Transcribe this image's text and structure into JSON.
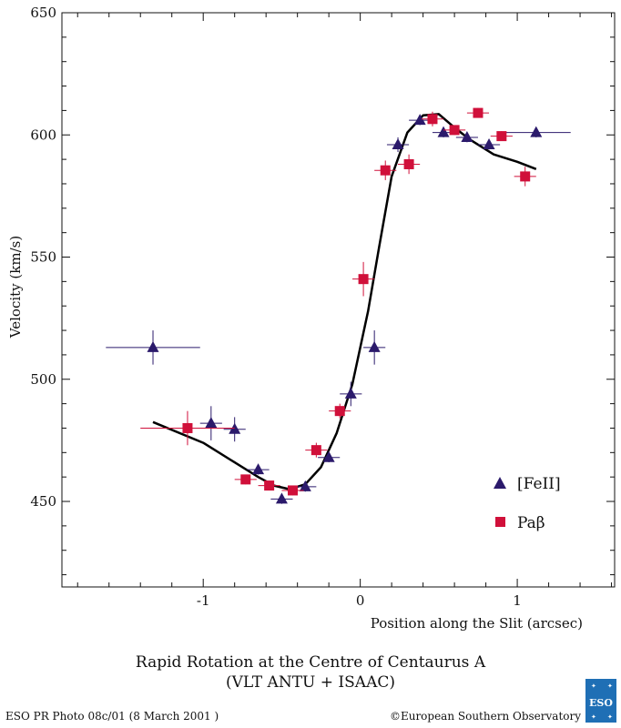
{
  "chart_data": {
    "type": "scatter",
    "xlabel": "Position along the Slit (arcsec)",
    "ylabel": "Velocity (km/s)",
    "xlim": [
      -1.9,
      1.62
    ],
    "ylim": [
      415,
      650
    ],
    "x_ticks": [
      -1,
      0,
      1
    ],
    "x_tick_labels": [
      "-1",
      "0",
      "1"
    ],
    "y_ticks": [
      450,
      500,
      550,
      600,
      650
    ],
    "y_tick_labels": [
      "450",
      "500",
      "550",
      "600",
      "650"
    ],
    "grid": false,
    "legend_position": "bottom-right",
    "series": [
      {
        "name": "[FeII]",
        "marker": "triangle",
        "color": "#2b1a6b",
        "points": [
          {
            "x": -1.32,
            "y": 513,
            "xerr": 0.3,
            "yerr": 7
          },
          {
            "x": -0.95,
            "y": 482,
            "xerr": 0.07,
            "yerr": 7
          },
          {
            "x": -0.8,
            "y": 479.5,
            "xerr": 0.07,
            "yerr": 5
          },
          {
            "x": -0.65,
            "y": 463,
            "xerr": 0.07,
            "yerr": 2
          },
          {
            "x": -0.5,
            "y": 451,
            "xerr": 0.07,
            "yerr": 2
          },
          {
            "x": -0.35,
            "y": 456,
            "xerr": 0.07,
            "yerr": 2
          },
          {
            "x": -0.2,
            "y": 468,
            "xerr": 0.07,
            "yerr": 2
          },
          {
            "x": -0.06,
            "y": 494,
            "xerr": 0.07,
            "yerr": 5
          },
          {
            "x": 0.09,
            "y": 513,
            "xerr": 0.07,
            "yerr": 7
          },
          {
            "x": 0.24,
            "y": 596,
            "xerr": 0.07,
            "yerr": 3
          },
          {
            "x": 0.38,
            "y": 606,
            "xerr": 0.07,
            "yerr": 2
          },
          {
            "x": 0.53,
            "y": 601,
            "xerr": 0.07,
            "yerr": 2
          },
          {
            "x": 0.68,
            "y": 599,
            "xerr": 0.07,
            "yerr": 2
          },
          {
            "x": 0.82,
            "y": 596,
            "xerr": 0.07,
            "yerr": 2
          },
          {
            "x": 1.12,
            "y": 601,
            "xerr": 0.22,
            "yerr": 2
          }
        ]
      },
      {
        "name": "Paβ",
        "marker": "square",
        "color": "#d0103a",
        "points": [
          {
            "x": -1.1,
            "y": 480,
            "xerr": 0.3,
            "yerr": 7
          },
          {
            "x": -0.73,
            "y": 459,
            "xerr": 0.07,
            "yerr": 2
          },
          {
            "x": -0.58,
            "y": 456.5,
            "xerr": 0.07,
            "yerr": 2
          },
          {
            "x": -0.43,
            "y": 454.5,
            "xerr": 0.07,
            "yerr": 2
          },
          {
            "x": -0.28,
            "y": 471,
            "xerr": 0.07,
            "yerr": 3
          },
          {
            "x": -0.13,
            "y": 487,
            "xerr": 0.07,
            "yerr": 3
          },
          {
            "x": 0.02,
            "y": 541,
            "xerr": 0.07,
            "yerr": 7
          },
          {
            "x": 0.16,
            "y": 585.5,
            "xerr": 0.07,
            "yerr": 4
          },
          {
            "x": 0.31,
            "y": 588,
            "xerr": 0.07,
            "yerr": 4
          },
          {
            "x": 0.46,
            "y": 606.5,
            "xerr": 0.07,
            "yerr": 3
          },
          {
            "x": 0.6,
            "y": 602,
            "xerr": 0.07,
            "yerr": 2
          },
          {
            "x": 0.75,
            "y": 609,
            "xerr": 0.07,
            "yerr": 2
          },
          {
            "x": 0.9,
            "y": 599.5,
            "xerr": 0.07,
            "yerr": 2
          },
          {
            "x": 1.05,
            "y": 583,
            "xerr": 0.07,
            "yerr": 4
          }
        ]
      }
    ],
    "fit_curve": {
      "color": "#000000",
      "points": [
        [
          -1.32,
          482.5
        ],
        [
          -1.0,
          474
        ],
        [
          -0.8,
          466
        ],
        [
          -0.65,
          460
        ],
        [
          -0.55,
          456.5
        ],
        [
          -0.45,
          455
        ],
        [
          -0.35,
          457
        ],
        [
          -0.25,
          464
        ],
        [
          -0.15,
          478
        ],
        [
          -0.05,
          498
        ],
        [
          0.05,
          528
        ],
        [
          0.12,
          554
        ],
        [
          0.2,
          583
        ],
        [
          0.3,
          601
        ],
        [
          0.4,
          608
        ],
        [
          0.5,
          608.5
        ],
        [
          0.6,
          603
        ],
        [
          0.7,
          598
        ],
        [
          0.85,
          592
        ],
        [
          1.0,
          589
        ],
        [
          1.12,
          586
        ]
      ]
    }
  },
  "caption": {
    "title": "Rapid Rotation at the Centre of Centaurus A",
    "subtitle": "(VLT ANTU + ISAAC)"
  },
  "footer": {
    "left": "ESO PR Photo 08c/01 (8 March 2001 )",
    "right": "©European Southern Observatory"
  },
  "logo": {
    "text": "ESO",
    "color": "#1f6fb5"
  }
}
